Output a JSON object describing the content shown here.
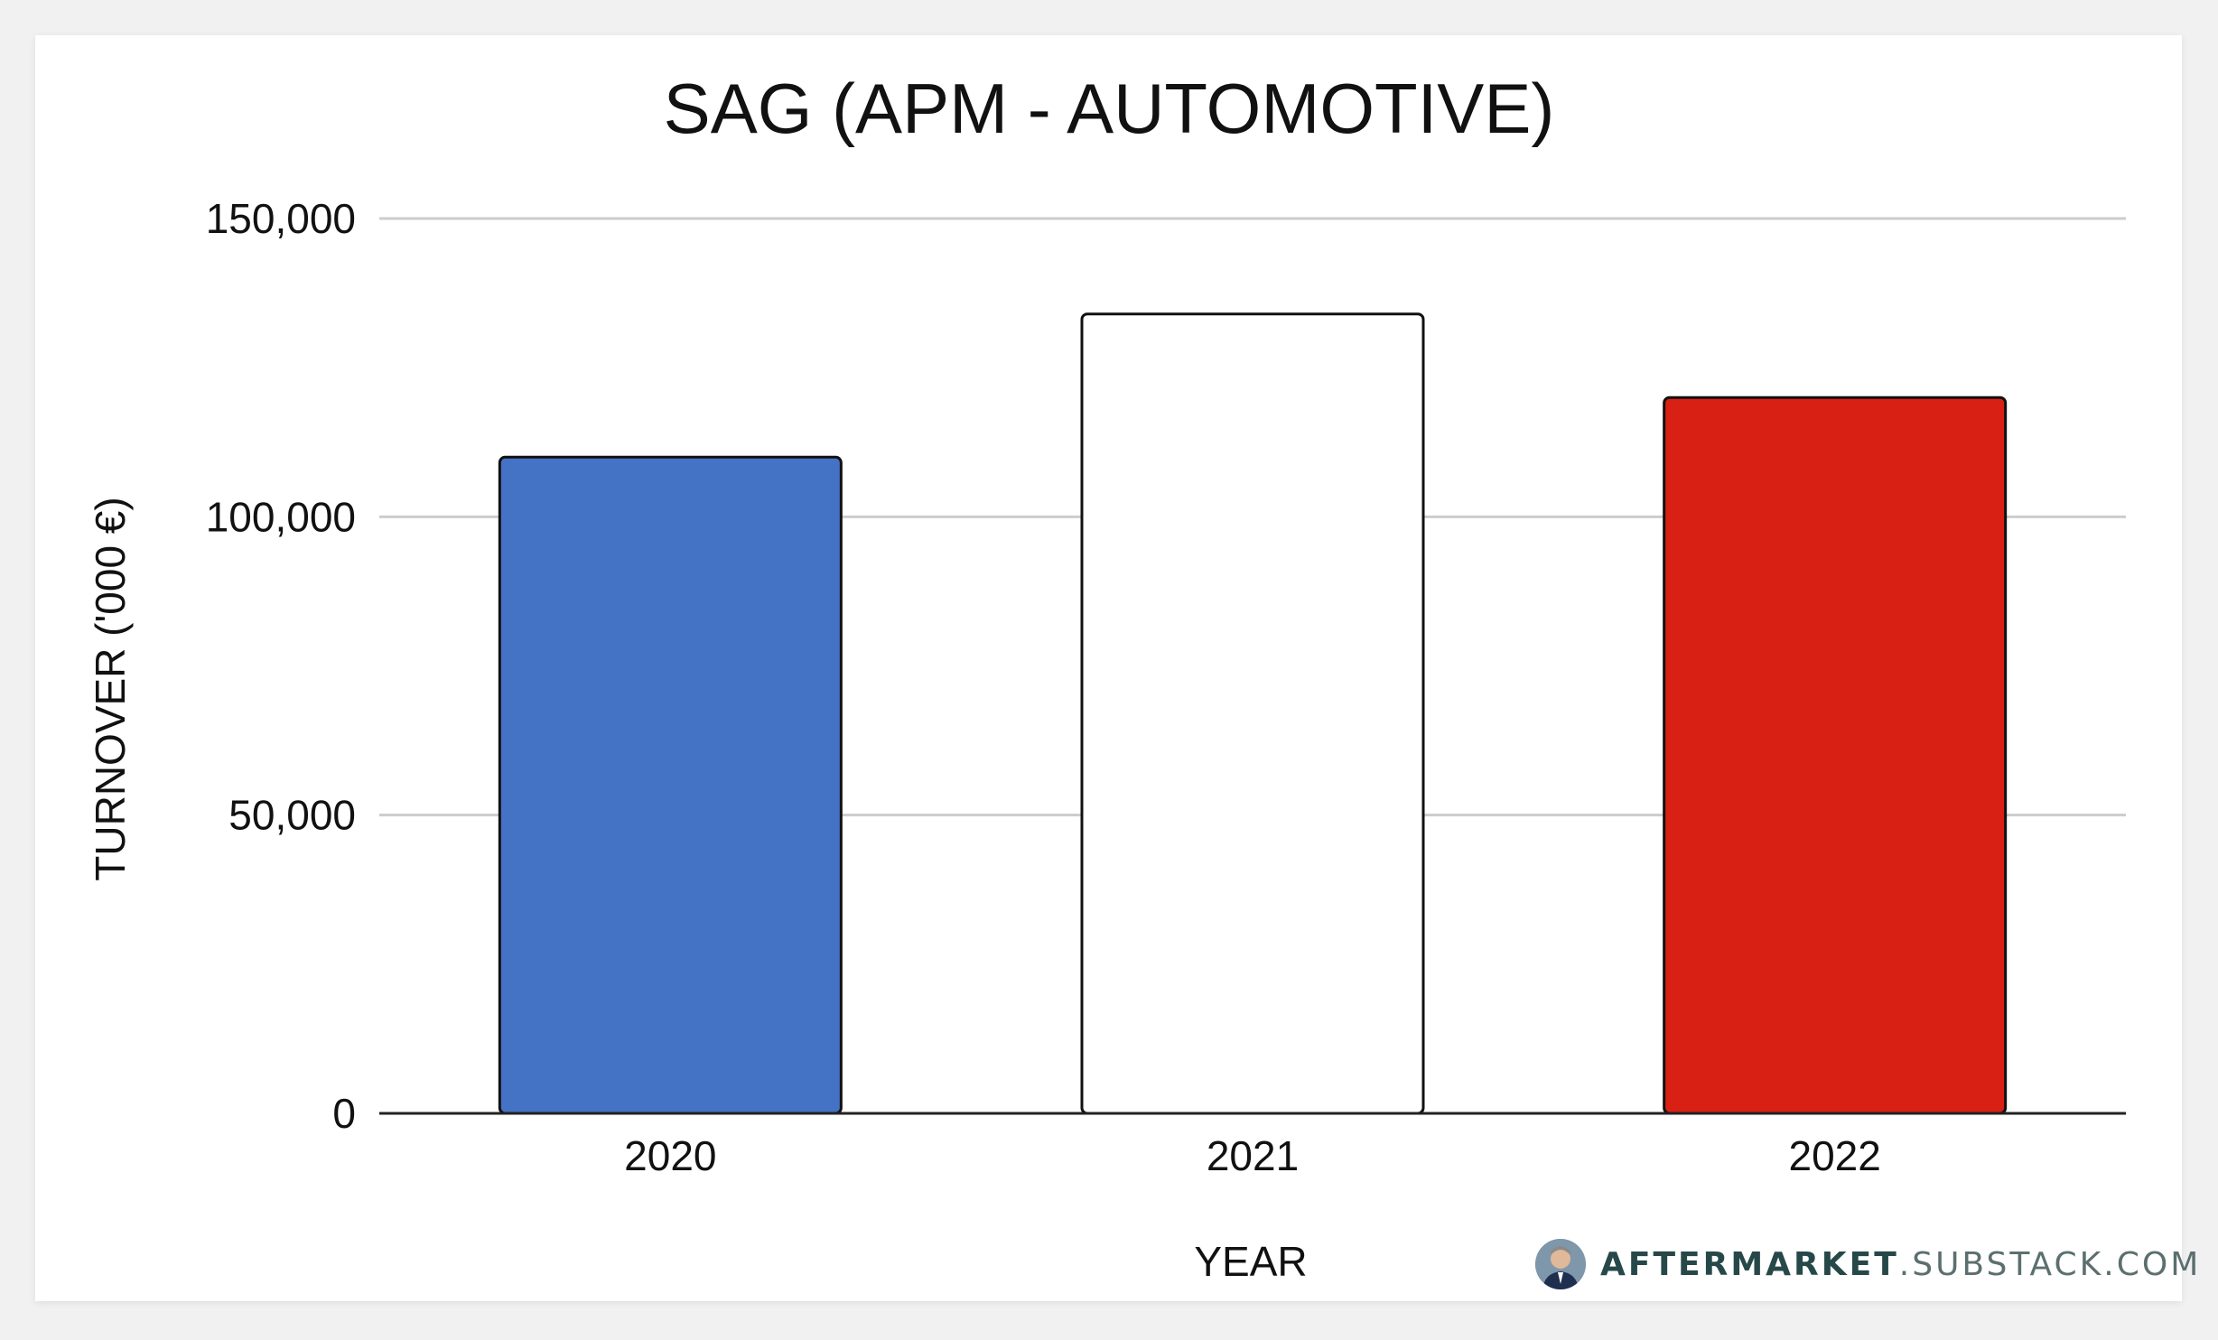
{
  "chart_data": {
    "type": "bar",
    "title": "SAG (APM - AUTOMOTIVE)",
    "xlabel": "YEAR",
    "ylabel": "TURNOVER ('000 €)",
    "categories": [
      "2020",
      "2021",
      "2022"
    ],
    "values": [
      110000,
      134000,
      120000
    ],
    "bar_colors": [
      "#4472c4",
      "#ffffff",
      "#d92014"
    ],
    "ylim": [
      0,
      150000
    ],
    "yticks": [
      0,
      50000,
      100000,
      150000
    ],
    "ytick_labels": [
      "0",
      "50,000",
      "100,000",
      "150,000"
    ],
    "grid": true,
    "legend": "none"
  },
  "branding": {
    "strong": "AFTERMARKET",
    "light": ".SUBSTACK.COM"
  }
}
